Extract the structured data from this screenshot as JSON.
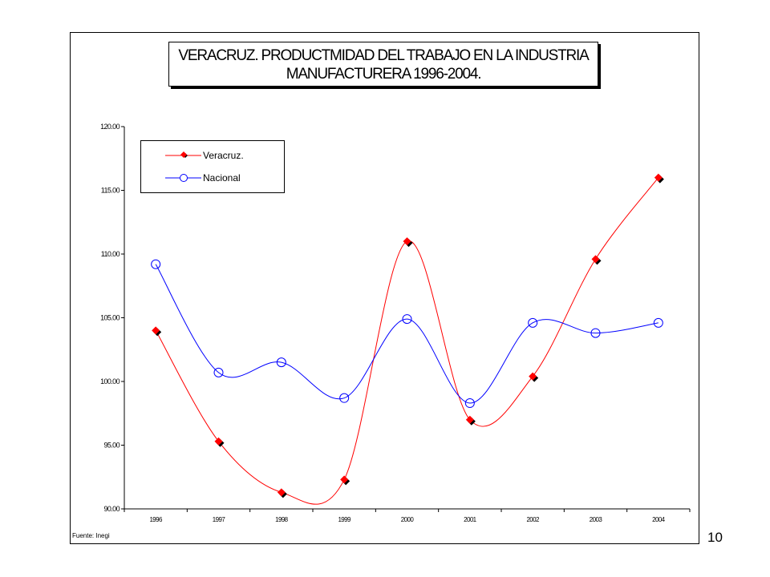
{
  "title_lines": [
    "VERACRUZ. PRODUCTMIDAD DEL TRABAJO EN LA INDUSTRIA",
    "MANUFACTURERA 1996-2004."
  ],
  "source_note": "Fuente: Inegi",
  "page_number": "10",
  "colors": {
    "veracruz": "#ff0000",
    "nacional": "#0000ff",
    "marker_shadow": "#000000"
  },
  "chart_data": {
    "type": "line",
    "title": "VERACRUZ. PRODUCTMIDAD DEL TRABAJO EN LA INDUSTRIA MANUFACTURERA 1996-2004.",
    "categories": [
      "1996",
      "1997",
      "1998",
      "1999",
      "2000",
      "2001",
      "2002",
      "2003",
      "2004"
    ],
    "ylim": [
      90,
      120
    ],
    "yticks": [
      "90.00",
      "95.00",
      "100.00",
      "105.00",
      "110.00",
      "115.00",
      "120.00"
    ],
    "smoothed": true,
    "grid": false,
    "legend_position": "top-left",
    "series": [
      {
        "name": "Veracruz.",
        "marker": "diamond",
        "color": "#ff0000",
        "values": [
          104.0,
          95.3,
          91.3,
          92.3,
          111.0,
          97.0,
          100.4,
          109.6,
          116.0
        ]
      },
      {
        "name": "Nacional",
        "marker": "circle",
        "color": "#0000ff",
        "values": [
          109.2,
          100.7,
          101.5,
          98.7,
          104.9,
          98.3,
          104.6,
          103.8,
          104.6
        ]
      }
    ]
  }
}
